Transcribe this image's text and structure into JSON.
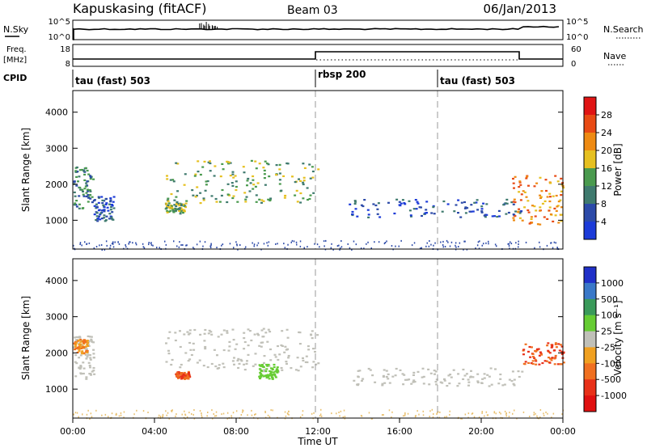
{
  "header": {
    "title": "Kapuskasing (fitACF)",
    "beam": "Beam 03",
    "date": "06/Jan/2013"
  },
  "labels": {
    "nsky": "N.Sky",
    "freq": "Freq.",
    "freq_unit": "[MHz]",
    "cpid": "CPID",
    "nsearch": "N.Search",
    "nave": "Nave",
    "xlabel": "Time UT"
  },
  "noise_panel": {
    "left_ticks": [
      "10^5",
      "10^0"
    ],
    "right_ticks": [
      "10^5",
      "10^0"
    ]
  },
  "freq_panel": {
    "left_ticks": [
      "18",
      "8"
    ],
    "right_ticks": [
      "60",
      "0"
    ]
  },
  "cpid_segments": [
    {
      "label": "tau (fast) 503",
      "start_hour": 0
    },
    {
      "label": "rbsp 200",
      "start_hour": 12
    },
    {
      "label": "tau (fast) 503",
      "start_hour": 18
    }
  ],
  "chart_data": [
    {
      "type": "heatmap",
      "title": "",
      "xlabel": "Time UT",
      "ylabel": "Slant Range [km]",
      "xlim": [
        0,
        24
      ],
      "ylim": [
        200,
        4600
      ],
      "x_ticks": [
        "00:00",
        "04:00",
        "08:00",
        "12:00",
        "16:00",
        "20:00",
        "00:00"
      ],
      "y_ticks": [
        1000,
        2000,
        3000,
        4000
      ],
      "colorbar": {
        "label": "Power [dB]",
        "ticks": [
          "4",
          "8",
          "12",
          "16",
          "20",
          "24",
          "28"
        ],
        "colors": [
          "#1c3bd8",
          "#2c4aa8",
          "#3f7a6e",
          "#4a9a4e",
          "#e6c020",
          "#ee8a12",
          "#e84a14",
          "#e01414"
        ]
      },
      "regions": [
        {
          "t_start": 0.0,
          "t_end": 1.0,
          "range_low": 1300,
          "range_high": 2500,
          "power_db": 12
        },
        {
          "t_start": 1.0,
          "t_end": 2.0,
          "range_low": 1000,
          "range_high": 1700,
          "power_db": 8
        },
        {
          "t_start": 4.5,
          "t_end": 5.5,
          "range_low": 1200,
          "range_high": 1500,
          "power_db": 14
        },
        {
          "t_start": 4.5,
          "t_end": 12.0,
          "range_low": 1500,
          "range_high": 2700,
          "power_db": 14
        },
        {
          "t_start": 13.5,
          "t_end": 22.0,
          "range_low": 1100,
          "range_high": 1600,
          "power_db": 6
        },
        {
          "t_start": 21.5,
          "t_end": 24.0,
          "range_low": 900,
          "range_high": 2300,
          "power_db": 22
        }
      ]
    },
    {
      "type": "heatmap",
      "title": "",
      "xlabel": "Time UT",
      "ylabel": "Slant Range [km]",
      "xlim": [
        0,
        24
      ],
      "ylim": [
        200,
        4600
      ],
      "x_ticks": [
        "00:00",
        "04:00",
        "08:00",
        "12:00",
        "16:00",
        "20:00",
        "00:00"
      ],
      "y_ticks": [
        1000,
        2000,
        3000,
        4000
      ],
      "colorbar": {
        "label": "Velocity [m s⁻¹]",
        "ticks": [
          "1000",
          "500",
          "100",
          "25",
          "-25",
          "-100",
          "-500",
          "-1000"
        ],
        "colors": [
          "#2030c8",
          "#3a78c8",
          "#3a9a5a",
          "#66cc33",
          "#c0c0b8",
          "#f0a020",
          "#f07020",
          "#e83018",
          "#e01010"
        ]
      },
      "regions": [
        {
          "t_start": 0.0,
          "t_end": 1.0,
          "range_low": 1300,
          "range_high": 2500,
          "velocity": 0
        },
        {
          "t_start": 0.0,
          "t_end": 0.7,
          "range_low": 2000,
          "range_high": 2400,
          "velocity": -300
        },
        {
          "t_start": 4.5,
          "t_end": 12.0,
          "range_low": 1500,
          "range_high": 2700,
          "velocity": 0
        },
        {
          "t_start": 5.0,
          "t_end": 5.7,
          "range_low": 1300,
          "range_high": 1500,
          "velocity": -500
        },
        {
          "t_start": 9.0,
          "t_end": 10.0,
          "range_low": 1300,
          "range_high": 1700,
          "velocity": 80
        },
        {
          "t_start": 13.5,
          "t_end": 22.0,
          "range_low": 1100,
          "range_high": 1600,
          "velocity": 0
        },
        {
          "t_start": 22.0,
          "t_end": 24.0,
          "range_low": 1700,
          "range_high": 2300,
          "velocity": -400
        }
      ]
    }
  ]
}
